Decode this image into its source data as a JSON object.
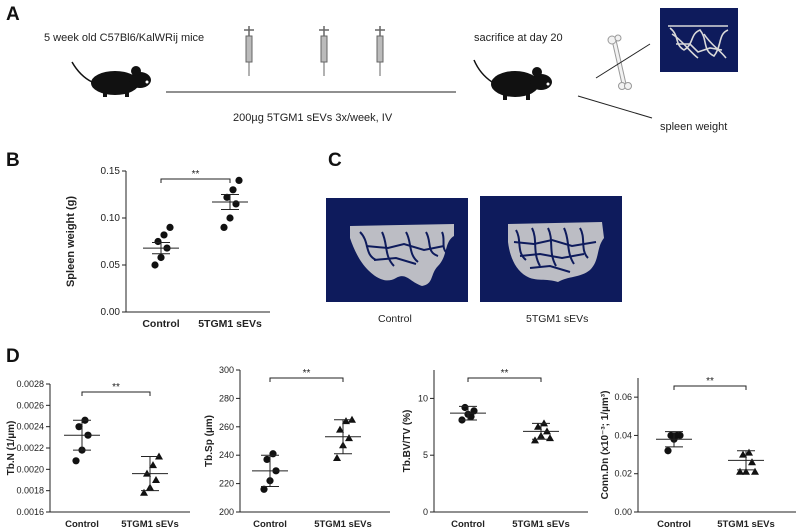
{
  "panels": {
    "a": {
      "letter": "A",
      "mice_label": "5 week old C57Bl6/KalWRij mice",
      "sacrifice_label": "sacrifice at day 20",
      "treatment_label": "200µg 5TGM1 sEVs 3x/week, IV",
      "spleen_label": "spleen weight",
      "colors": {
        "mouse": "#111111",
        "microct_bg": "#0e1b5c",
        "bone": "#d9d9d9"
      }
    },
    "b": {
      "letter": "B"
    },
    "c": {
      "letter": "C",
      "left_caption": "Control",
      "right_caption": "5TGM1 sEVs"
    },
    "d": {
      "letter": "D"
    }
  },
  "chart_data": [
    {
      "id": "spleen",
      "type": "scatter",
      "title": "",
      "ylabel": "Spleen weight (g)",
      "categories": [
        "Control",
        "5TGM1 sEVs"
      ],
      "ylim": [
        0.0,
        0.15
      ],
      "yticks": [
        0.0,
        0.05,
        0.1,
        0.15
      ],
      "ytick_labels": [
        "0.00",
        "0.05",
        "0.10",
        "0.15"
      ],
      "markers": [
        "circle",
        "circle"
      ],
      "series": [
        {
          "name": "Control",
          "values": [
            0.05,
            0.058,
            0.068,
            0.075,
            0.082,
            0.09
          ],
          "mean": 0.068,
          "sem_low": 0.062,
          "sem_high": 0.074
        },
        {
          "name": "5TGM1 sEVs",
          "values": [
            0.09,
            0.1,
            0.115,
            0.122,
            0.13,
            0.14
          ],
          "mean": 0.117,
          "sem_low": 0.109,
          "sem_high": 0.125
        }
      ],
      "significance": "**"
    },
    {
      "id": "tbn",
      "type": "scatter",
      "ylabel": "Tb.N (1/µm)",
      "categories": [
        "Control",
        "5TGM1 sEVs"
      ],
      "ylim": [
        0.0016,
        0.0028
      ],
      "yticks": [
        0.0016,
        0.0018,
        0.002,
        0.0022,
        0.0024,
        0.0026,
        0.0028
      ],
      "ytick_labels": [
        "0.0016",
        "0.0018",
        "0.0020",
        "0.0022",
        "0.0024",
        "0.0026",
        "0.0028"
      ],
      "markers": [
        "circle",
        "triangle"
      ],
      "series": [
        {
          "name": "Control",
          "values": [
            0.00208,
            0.00218,
            0.00232,
            0.0024,
            0.00246
          ],
          "mean": 0.00232,
          "sem_low": 0.00218,
          "sem_high": 0.00246
        },
        {
          "name": "5TGM1 sEVs",
          "values": [
            0.00178,
            0.00183,
            0.0019,
            0.00196,
            0.00204,
            0.00212
          ],
          "mean": 0.00196,
          "sem_low": 0.0018,
          "sem_high": 0.00212
        }
      ],
      "significance": "**"
    },
    {
      "id": "tbsp",
      "type": "scatter",
      "ylabel": "Tb.Sp (µm)",
      "categories": [
        "Control",
        "5TGM1 sEVs"
      ],
      "ylim": [
        200,
        300
      ],
      "yticks": [
        200,
        220,
        240,
        260,
        280,
        300
      ],
      "ytick_labels": [
        "200",
        "220",
        "240",
        "260",
        "280",
        "300"
      ],
      "markers": [
        "circle",
        "triangle"
      ],
      "series": [
        {
          "name": "Control",
          "values": [
            216,
            222,
            229,
            237,
            241
          ],
          "mean": 229,
          "sem_low": 218,
          "sem_high": 240
        },
        {
          "name": "5TGM1 sEVs",
          "values": [
            238,
            247,
            252,
            258,
            264,
            265
          ],
          "mean": 253,
          "sem_low": 241,
          "sem_high": 265
        }
      ],
      "significance": "**"
    },
    {
      "id": "bvtv",
      "type": "scatter",
      "ylabel": "Tb.BV/TV (%)",
      "categories": [
        "Control",
        "5TGM1 sEVs"
      ],
      "ylim": [
        0,
        12.5
      ],
      "yticks": [
        0,
        5,
        10
      ],
      "ytick_labels": [
        "0",
        "5",
        "10"
      ],
      "markers": [
        "circle",
        "triangle"
      ],
      "series": [
        {
          "name": "Control",
          "values": [
            8.1,
            8.6,
            8.9,
            9.2,
            8.4
          ],
          "mean": 8.7,
          "sem_low": 8.1,
          "sem_high": 9.3
        },
        {
          "name": "5TGM1 sEVs",
          "values": [
            6.3,
            6.7,
            7.1,
            7.5,
            7.8,
            6.5
          ],
          "mean": 7.1,
          "sem_low": 6.4,
          "sem_high": 7.8
        },
        {
          "name": "_",
          "values": []
        }
      ],
      "significance": "**"
    },
    {
      "id": "conndn",
      "type": "scatter",
      "ylabel": "Conn.Dn (x10⁻³; 1/µm³)",
      "categories": [
        "Control",
        "5TGM1 sEVs"
      ],
      "ylim": [
        0.0,
        0.07
      ],
      "yticks": [
        0.0,
        0.02,
        0.04,
        0.06
      ],
      "ytick_labels": [
        "0.00",
        "0.02",
        "0.04",
        "0.06"
      ],
      "markers": [
        "circle",
        "triangle"
      ],
      "series": [
        {
          "name": "Control",
          "values": [
            0.032,
            0.038,
            0.04,
            0.04,
            0.04
          ],
          "mean": 0.038,
          "sem_low": 0.034,
          "sem_high": 0.042
        },
        {
          "name": "5TGM1 sEVs",
          "values": [
            0.021,
            0.021,
            0.026,
            0.03,
            0.031,
            0.021
          ],
          "mean": 0.027,
          "sem_low": 0.022,
          "sem_high": 0.032
        },
        {
          "name": "_",
          "values": []
        }
      ],
      "significance": "**"
    }
  ]
}
